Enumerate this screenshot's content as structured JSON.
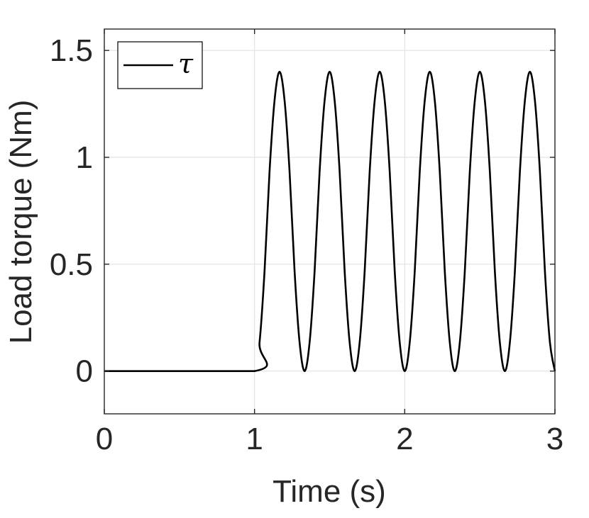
{
  "chart_data": {
    "type": "line",
    "title": "",
    "xlabel": "Time (s)",
    "ylabel": "Load torque (Nm)",
    "xlim": [
      0,
      3
    ],
    "ylim": [
      -0.2,
      1.6
    ],
    "xticks": [
      0,
      1,
      2,
      3
    ],
    "xtick_labels": [
      "0",
      "1",
      "2",
      "3"
    ],
    "yticks": [
      0,
      0.5,
      1,
      1.5
    ],
    "ytick_labels": [
      "0",
      "0.5",
      "1",
      "1.5"
    ],
    "grid": true,
    "legend_position": "top-left",
    "series": [
      {
        "name": "τ",
        "color": "#000000",
        "x": [
          0,
          1.0,
          1.0333,
          1.0667,
          1.1,
          1.1333,
          1.1667,
          1.2,
          1.2333,
          1.2667,
          1.3,
          1.3333,
          1.3667,
          1.4,
          1.4333,
          1.4667,
          1.5,
          1.5333,
          1.5667,
          1.6,
          1.6333,
          1.6667,
          1.7,
          1.7333,
          1.7667,
          1.8,
          1.8333,
          1.8667,
          1.9,
          1.9333,
          1.9667,
          2.0,
          2.0333,
          2.0667,
          2.1,
          2.1333,
          2.1667,
          2.2,
          2.2333,
          2.2667,
          2.3,
          2.3333,
          2.3667,
          2.4,
          2.4333,
          2.4667,
          2.5,
          2.5333,
          2.5667,
          2.6,
          2.6333,
          2.6667,
          2.7,
          2.7333,
          2.7667,
          2.8,
          2.8333,
          2.8667,
          2.9,
          2.9333,
          2.9667,
          3.0
        ],
        "y": [
          0,
          0,
          0.134,
          0.467,
          0.933,
          1.266,
          1.4,
          1.266,
          0.933,
          0.467,
          0.134,
          0,
          0.134,
          0.467,
          0.933,
          1.266,
          1.4,
          1.266,
          0.933,
          0.467,
          0.134,
          0,
          0.134,
          0.467,
          0.933,
          1.266,
          1.4,
          1.266,
          0.933,
          0.467,
          0.134,
          0,
          0.134,
          0.467,
          0.933,
          1.266,
          1.4,
          1.266,
          0.933,
          0.467,
          0.134,
          0,
          0.134,
          0.467,
          0.933,
          1.266,
          1.4,
          1.266,
          0.933,
          0.467,
          0.134,
          0,
          0.134,
          0.467,
          0.933,
          1.266,
          1.4,
          1.266,
          0.933,
          0.467,
          0.134,
          0
        ]
      }
    ]
  }
}
